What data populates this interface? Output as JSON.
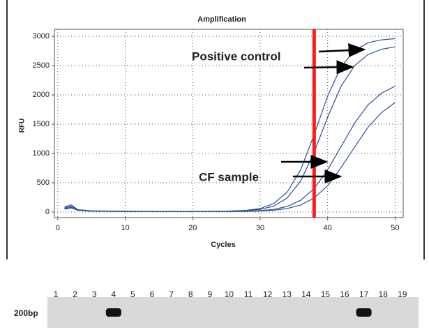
{
  "chart_data": {
    "type": "line",
    "title": "Amplification",
    "xlabel": "Cycles",
    "ylabel": "RFU",
    "x": [
      1,
      2,
      3,
      5,
      10,
      15,
      20,
      25,
      28,
      30,
      32,
      34,
      36,
      38,
      40,
      42,
      44,
      46,
      48,
      50
    ],
    "series": [
      {
        "color": "#2b4f93",
        "values": [
          90,
          120,
          40,
          20,
          15,
          10,
          10,
          15,
          30,
          60,
          145,
          340,
          720,
          1320,
          1980,
          2480,
          2760,
          2890,
          2940,
          2960
        ]
      },
      {
        "color": "#2b4f93",
        "values": [
          70,
          100,
          40,
          20,
          15,
          10,
          10,
          15,
          25,
          45,
          100,
          240,
          530,
          1020,
          1620,
          2150,
          2500,
          2690,
          2780,
          2820
        ]
      },
      {
        "color": "#2b4f93",
        "values": [
          60,
          80,
          30,
          15,
          10,
          10,
          10,
          10,
          15,
          25,
          45,
          95,
          200,
          400,
          720,
          1120,
          1520,
          1830,
          2030,
          2150
        ]
      },
      {
        "color": "#2b4f93",
        "values": [
          50,
          70,
          30,
          15,
          10,
          10,
          10,
          10,
          12,
          18,
          30,
          60,
          120,
          240,
          450,
          760,
          1110,
          1450,
          1700,
          1870
        ]
      }
    ],
    "xlim": [
      -0.5,
      51.2
    ],
    "ylim": [
      -95,
      3120
    ],
    "xticks": [
      0,
      10,
      20,
      30,
      40,
      50
    ],
    "yticks": [
      0,
      500,
      1000,
      1500,
      2000,
      2500,
      3000
    ],
    "grid": true,
    "threshold_line": {
      "x": 38,
      "color": "#ff1a1a"
    },
    "annotations": [
      "Positive control",
      "CF sample"
    ]
  },
  "gel": {
    "marker": "200bp",
    "lanes": [
      {
        "label": "1",
        "band": false
      },
      {
        "label": "2",
        "band": false
      },
      {
        "label": "3",
        "band": false
      },
      {
        "label": "4",
        "band": true
      },
      {
        "label": "5",
        "band": false
      },
      {
        "label": "6",
        "band": false
      },
      {
        "label": "7",
        "band": false
      },
      {
        "label": "8",
        "band": false
      },
      {
        "label": "9",
        "band": false
      },
      {
        "label": "10",
        "band": false
      },
      {
        "label": "11",
        "band": false
      },
      {
        "label": "12",
        "band": false
      },
      {
        "label": "13",
        "band": false
      },
      {
        "label": "14",
        "band": false
      },
      {
        "label": "15",
        "band": false
      },
      {
        "label": "16",
        "band": false
      },
      {
        "label": "17",
        "band": true
      },
      {
        "label": "18",
        "band": false
      },
      {
        "label": "19",
        "band": false
      }
    ]
  }
}
